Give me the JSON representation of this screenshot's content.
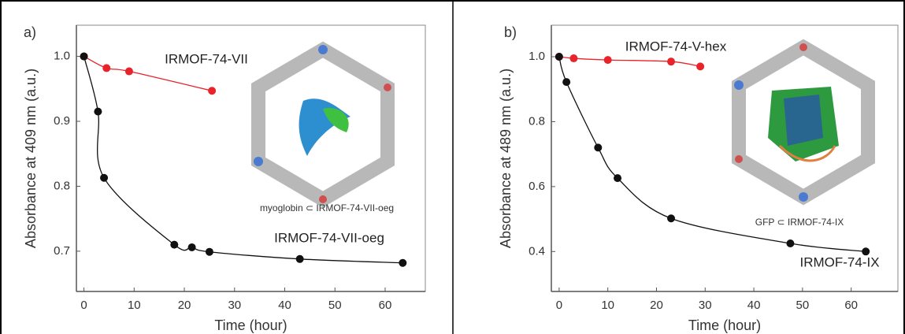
{
  "chart_data": [
    {
      "type": "line",
      "panel_label": "a)",
      "ylabel": "Absorbance at 409 nm (a.u.)",
      "xlabel": "Time (hour)",
      "annotation": "myoglobin ⊂ IRMOF-74-VII-oeg",
      "xlim": [
        -1.5,
        68
      ],
      "xticks": [
        0,
        10,
        20,
        30,
        40,
        50,
        60
      ],
      "ylim": [
        0.638,
        1.048
      ],
      "yticks": [
        0.7,
        0.8,
        0.9,
        {
          "value": 1,
          "label": "1.0"
        }
      ],
      "series": [
        {
          "name": "IRMOF-74-VII",
          "color": "#e8232a",
          "x": [
            0,
            4.5,
            9,
            25.5
          ],
          "values": [
            1.0,
            0.982,
            0.977,
            0.947
          ]
        },
        {
          "name": "IRMOF-74-VII-oeg",
          "color": "#111111",
          "x": [
            0,
            2.8,
            4,
            18,
            21.5,
            25,
            43,
            63.5
          ],
          "values": [
            1.0,
            0.915,
            0.813,
            0.71,
            0.706,
            0.699,
            0.688,
            0.682
          ]
        }
      ]
    },
    {
      "type": "line",
      "panel_label": "b)",
      "ylabel": "Absorbance at 489 nm (a.u.)",
      "xlabel": "Time (hour)",
      "annotation": "GFP ⊂ IRMOF-74-IX",
      "xlim": [
        -1.6,
        69.6
      ],
      "xticks": [
        0,
        10,
        20,
        30,
        40,
        50,
        60
      ],
      "ylim": [
        0.277,
        1.097
      ],
      "yticks": [
        0.4,
        0.6,
        0.8,
        {
          "value": 1,
          "label": "1.0"
        }
      ],
      "series": [
        {
          "name": "IRMOF-74-V-hex",
          "color": "#e8232a",
          "x": [
            0,
            3,
            10,
            23,
            29
          ],
          "values": [
            1.0,
            0.995,
            0.99,
            0.985,
            0.97
          ]
        },
        {
          "name": "IRMOF-74-IX",
          "color": "#111111",
          "x": [
            0,
            1.5,
            8,
            12,
            23,
            47.5,
            63
          ],
          "values": [
            1.0,
            0.922,
            0.72,
            0.626,
            0.502,
            0.425,
            0.4
          ]
        }
      ]
    }
  ]
}
